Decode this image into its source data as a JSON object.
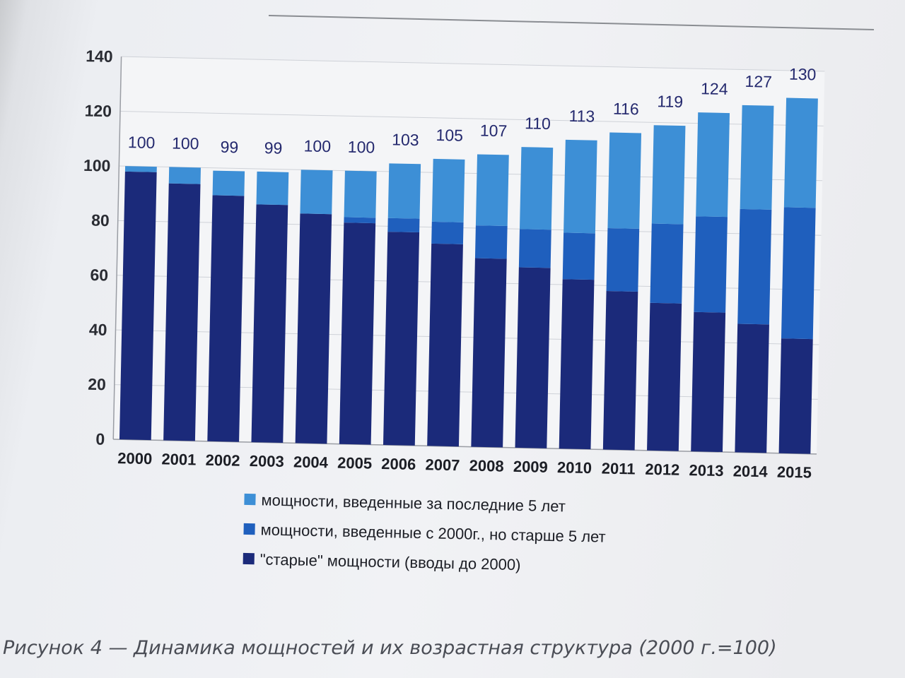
{
  "chart_data": {
    "type": "bar",
    "stacked": true,
    "categories": [
      "2000",
      "2001",
      "2002",
      "2003",
      "2004",
      "2005",
      "2006",
      "2007",
      "2008",
      "2009",
      "2010",
      "2011",
      "2012",
      "2013",
      "2014",
      "2015"
    ],
    "series": [
      {
        "name": "\"старые\" мощности (вводы до 2000)",
        "color": "#1b2a7a",
        "values": [
          98,
          94,
          90,
          87,
          84,
          81,
          78,
          74,
          69,
          66,
          62,
          58,
          54,
          51,
          47,
          42
        ]
      },
      {
        "name": "мощности, введенные с 2000г., но старше 5 лет",
        "color": "#1f5fbd",
        "values": [
          0,
          0,
          0,
          0,
          0,
          2,
          5,
          8,
          12,
          14,
          17,
          23,
          29,
          35,
          42,
          48
        ]
      },
      {
        "name": "мощности, введенные за последние 5 лет",
        "color": "#3d8fd6",
        "values": [
          2,
          6,
          9,
          12,
          16,
          17,
          20,
          23,
          26,
          30,
          34,
          35,
          36,
          38,
          38,
          40
        ]
      }
    ],
    "data_labels": [
      "100",
      "100",
      "99",
      "99",
      "100",
      "100",
      "103",
      "105",
      "107",
      "110",
      "113",
      "116",
      "119",
      "124",
      "127",
      "130"
    ],
    "legend_order": [
      2,
      1,
      0
    ],
    "legend_position": "bottom",
    "ylim": [
      0,
      140
    ],
    "yticks": [
      "0",
      "20",
      "40",
      "60",
      "80",
      "100",
      "120",
      "140"
    ],
    "grid": true,
    "title": "",
    "xlabel": "",
    "ylabel": ""
  },
  "caption": "Рисунок 4 — Динамика мощностей и их возрастная структура (2000 г.=100)"
}
